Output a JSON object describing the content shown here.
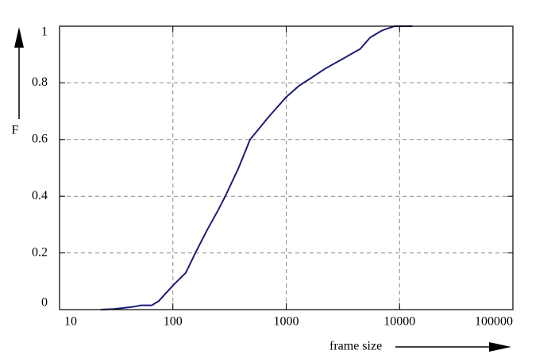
{
  "chart_data": {
    "type": "line",
    "x_label": "frame size",
    "y_label": "F",
    "xscale": "log",
    "grid": true,
    "xlim": [
      10,
      100000
    ],
    "xticks": [
      10,
      100,
      1000,
      10000,
      100000
    ],
    "ylim": [
      0,
      1
    ],
    "yticks": [
      0,
      0.2,
      0.4,
      0.6,
      0.8,
      1
    ],
    "series": [
      {
        "color": "#1c1c78",
        "x": [
          23,
          30,
          35,
          45,
          52,
          65,
          75,
          90,
          100,
          130,
          158,
          200,
          250,
          290,
          380,
          480,
          700,
          1000,
          1300,
          1700,
          2200,
          3000,
          4500,
          5500,
          7000,
          9000,
          13000
        ],
        "values": [
          0,
          0.002,
          0.005,
          0.01,
          0.015,
          0.015,
          0.03,
          0.065,
          0.085,
          0.13,
          0.2,
          0.28,
          0.35,
          0.4,
          0.5,
          0.6,
          0.68,
          0.75,
          0.79,
          0.82,
          0.85,
          0.88,
          0.92,
          0.96,
          0.985,
          1,
          1
        ]
      }
    ]
  }
}
